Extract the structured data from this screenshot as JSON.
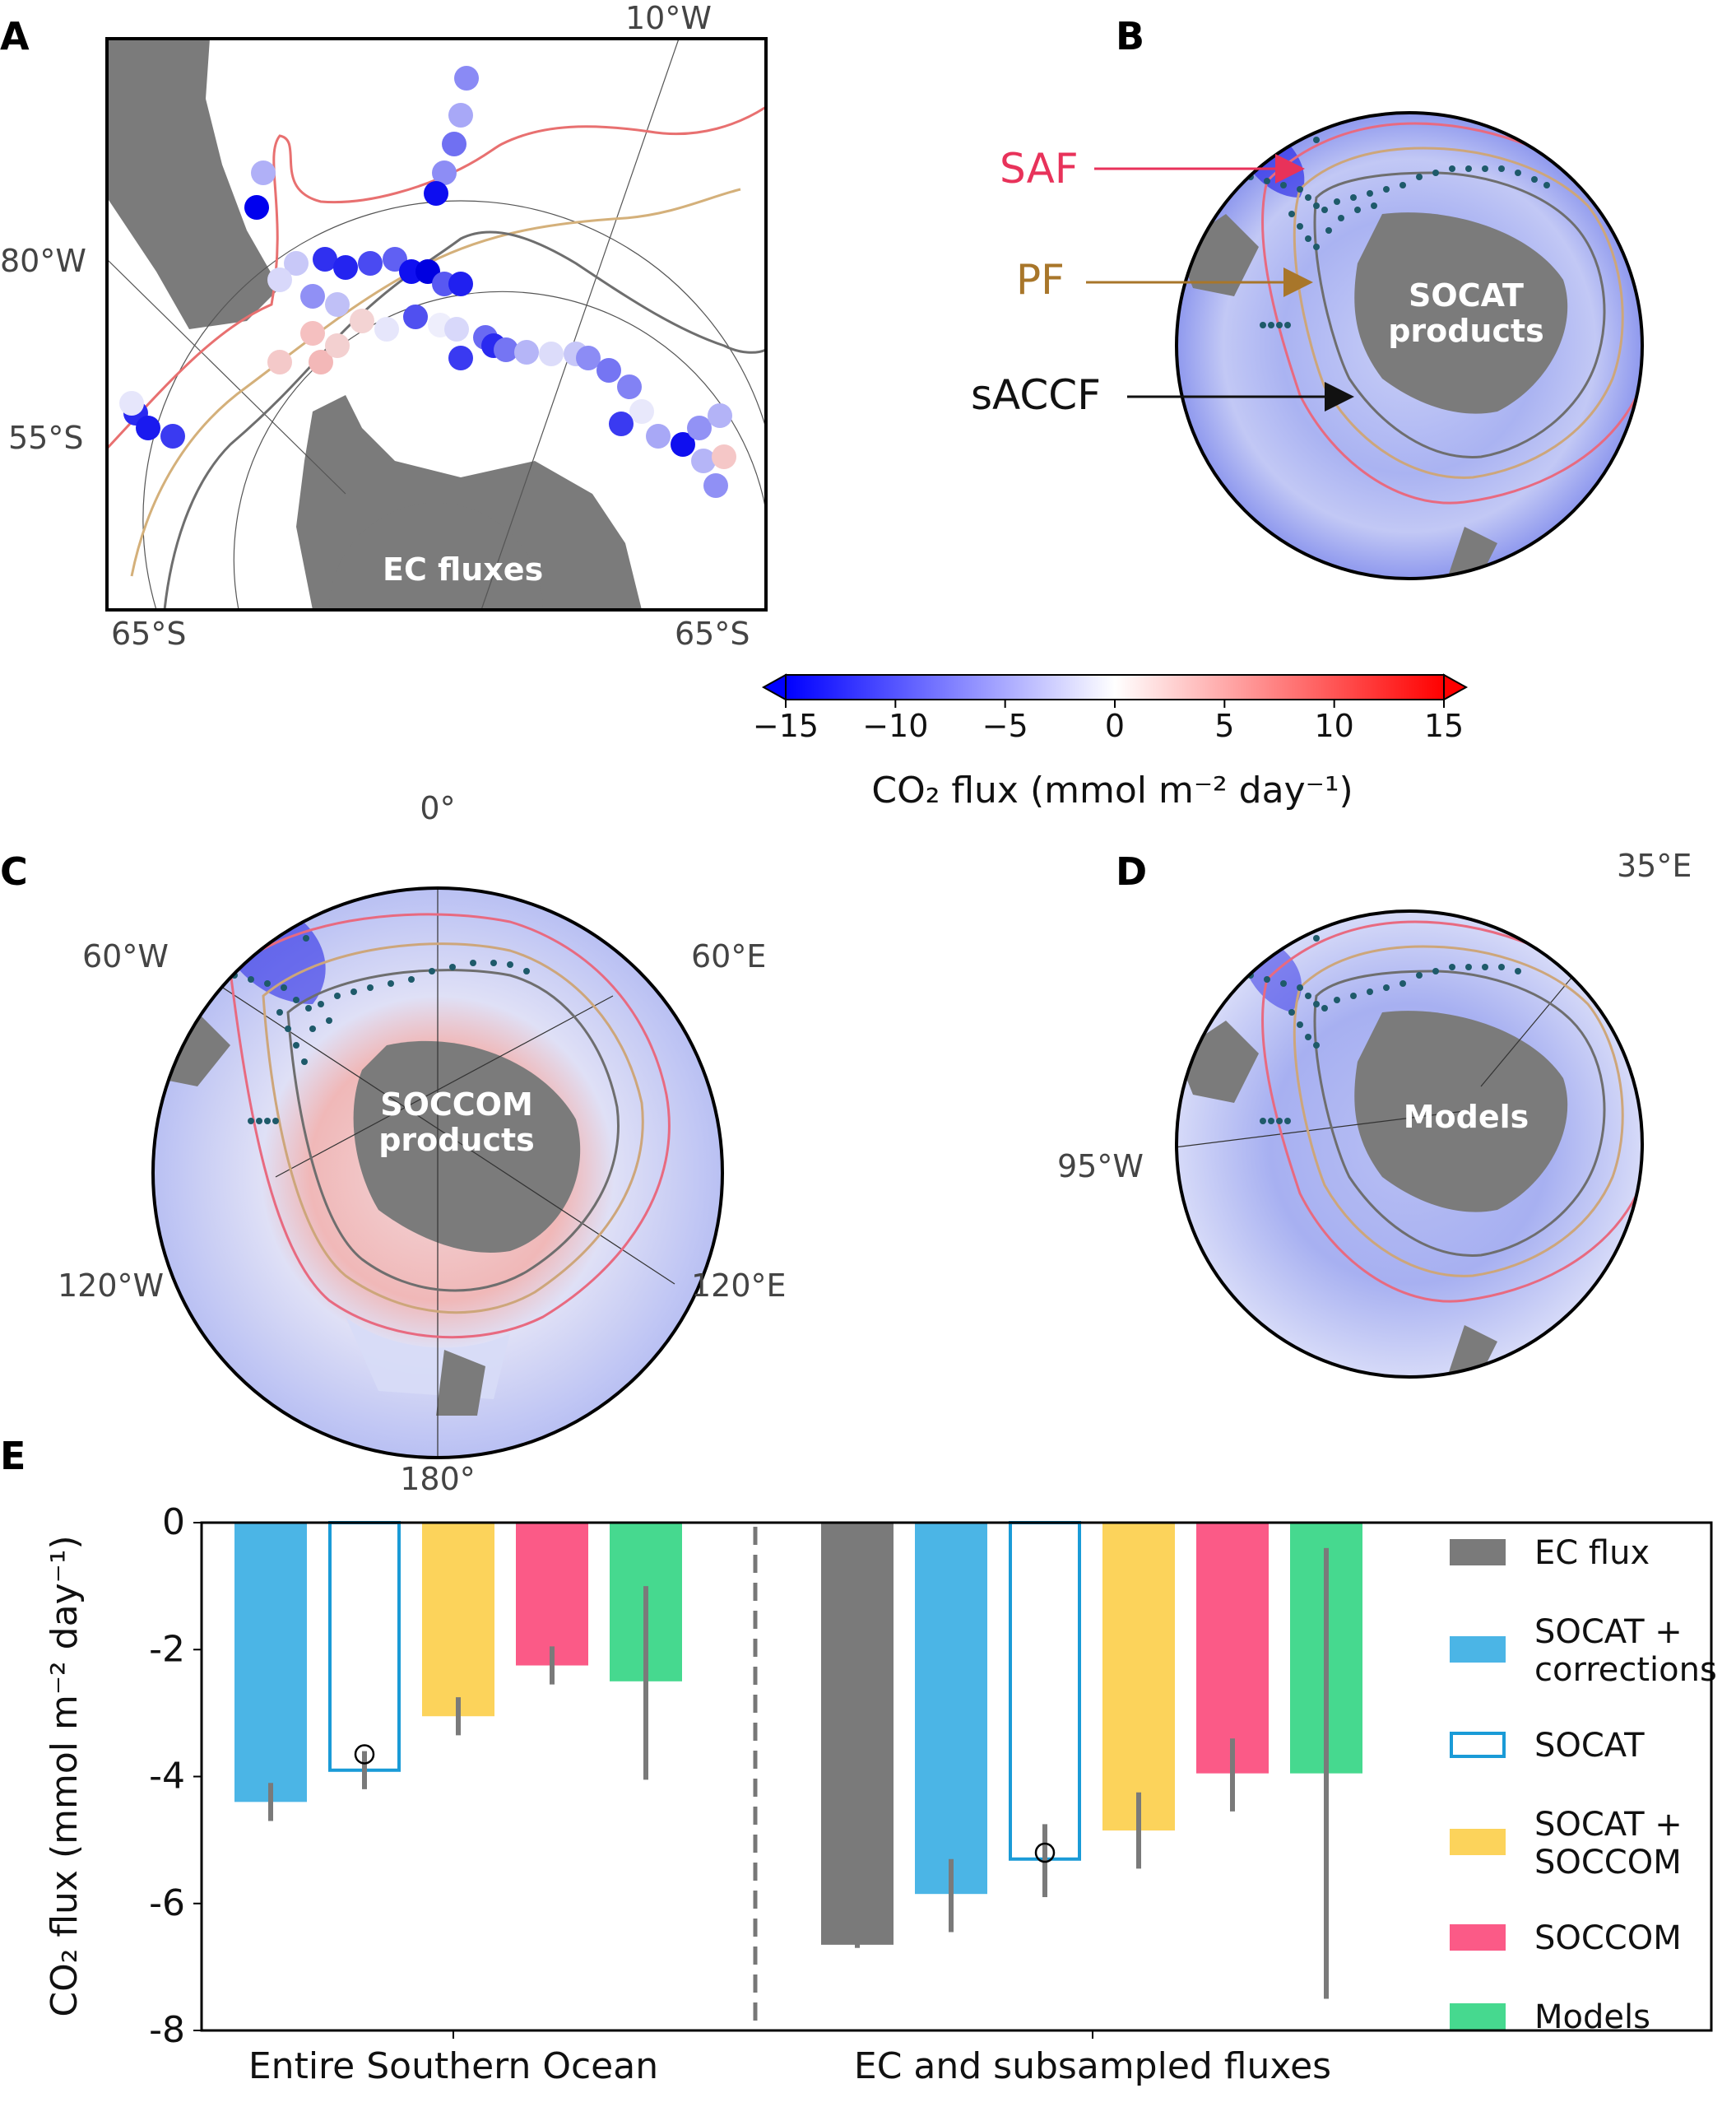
{
  "colors": {
    "ec_flux": "#7a7a7a",
    "socat_corrections": "#4bb5e6",
    "socat": "#1a9bd7",
    "socat_soccom": "#fcd35b",
    "soccom": "#fb5a87",
    "models": "#46d98f",
    "land": "#7b7b7b",
    "saf": "#e8325a",
    "pf": "#b0852f",
    "saccf": "#111111",
    "ship_track": "#1e5a6a"
  },
  "panels": {
    "A": {
      "letter": "A",
      "label": "EC fluxes",
      "lon_labels": [
        "10°W",
        "80°W"
      ],
      "lat_labels": [
        "55°S",
        "65°S",
        "65°S"
      ]
    },
    "B": {
      "letter": "B",
      "label_line1": "SOCAT",
      "label_line2": "products",
      "fronts": [
        {
          "name": "SAF",
          "color": "#e8325a"
        },
        {
          "name": "PF",
          "color": "#a8762a"
        },
        {
          "name": "sACCF",
          "color": "#111111"
        }
      ]
    },
    "C": {
      "letter": "C",
      "label_line1": "SOCCOM",
      "label_line2": "products",
      "lon_labels": [
        "0°",
        "60°W",
        "60°E",
        "120°W",
        "120°E",
        "180°"
      ]
    },
    "D": {
      "letter": "D",
      "label": "Models",
      "lon_labels": [
        "35°E",
        "95°W"
      ]
    },
    "E": {
      "letter": "E"
    }
  },
  "colorbar": {
    "label": "CO₂ flux (mmol m⁻² day⁻¹)",
    "ticks": [
      "−15",
      "−10",
      "−5",
      "0",
      "5",
      "10",
      "15"
    ],
    "range": [
      -15,
      15
    ],
    "extend": "both"
  },
  "chart_data": {
    "type": "bar",
    "ylabel": "CO₂ flux (mmol m⁻² day⁻¹)",
    "ylim": [
      -8,
      0
    ],
    "yticks": [
      "0",
      "-2",
      "-4",
      "-6",
      "-8"
    ],
    "groups": [
      {
        "name": "Entire Southern Ocean",
        "bars": [
          {
            "series": "SOCAT + corrections",
            "value": -4.4,
            "err_low": -4.7,
            "err_high": -4.1,
            "hollow": false
          },
          {
            "series": "SOCAT",
            "value": -3.9,
            "err_low": -4.2,
            "err_high": -3.6,
            "hollow": true,
            "marker": -3.65
          },
          {
            "series": "SOCAT + SOCCOM",
            "value": -3.05,
            "err_low": -3.35,
            "err_high": -2.75,
            "hollow": false
          },
          {
            "series": "SOCCOM",
            "value": -2.25,
            "err_low": -2.55,
            "err_high": -1.95,
            "hollow": false
          },
          {
            "series": "Models",
            "value": -2.5,
            "err_low": -4.05,
            "err_high": -1.0,
            "hollow": false
          }
        ]
      },
      {
        "name": "EC and subsampled fluxes",
        "bars": [
          {
            "series": "EC flux",
            "value": -6.65,
            "err_low": -6.7,
            "err_high": -6.6,
            "hollow": false
          },
          {
            "series": "SOCAT + corrections",
            "value": -5.85,
            "err_low": -6.45,
            "err_high": -5.3,
            "hollow": false
          },
          {
            "series": "SOCAT",
            "value": -5.3,
            "err_low": -5.9,
            "err_high": -4.75,
            "hollow": true,
            "marker": -5.2
          },
          {
            "series": "SOCAT + SOCCOM",
            "value": -4.85,
            "err_low": -5.45,
            "err_high": -4.25,
            "hollow": false
          },
          {
            "series": "SOCCOM",
            "value": -3.95,
            "err_low": -4.55,
            "err_high": -3.4,
            "hollow": false
          },
          {
            "series": "Models",
            "value": -3.95,
            "err_low": -7.5,
            "err_high": -0.4,
            "hollow": false
          }
        ]
      }
    ],
    "legend": [
      {
        "line1": "EC flux",
        "line2": "",
        "key": "ec_flux",
        "hollow": false
      },
      {
        "line1": "SOCAT +",
        "line2": "corrections",
        "key": "socat_corrections",
        "hollow": false
      },
      {
        "line1": "SOCAT",
        "line2": "",
        "key": "socat",
        "hollow": true
      },
      {
        "line1": "SOCAT +",
        "line2": "SOCCOM",
        "key": "socat_soccom",
        "hollow": false
      },
      {
        "line1": "SOCCOM",
        "line2": "",
        "key": "soccom",
        "hollow": false
      },
      {
        "line1": "Models",
        "line2": "",
        "key": "models",
        "hollow": false
      }
    ],
    "legend_position": "right",
    "grid": false
  }
}
